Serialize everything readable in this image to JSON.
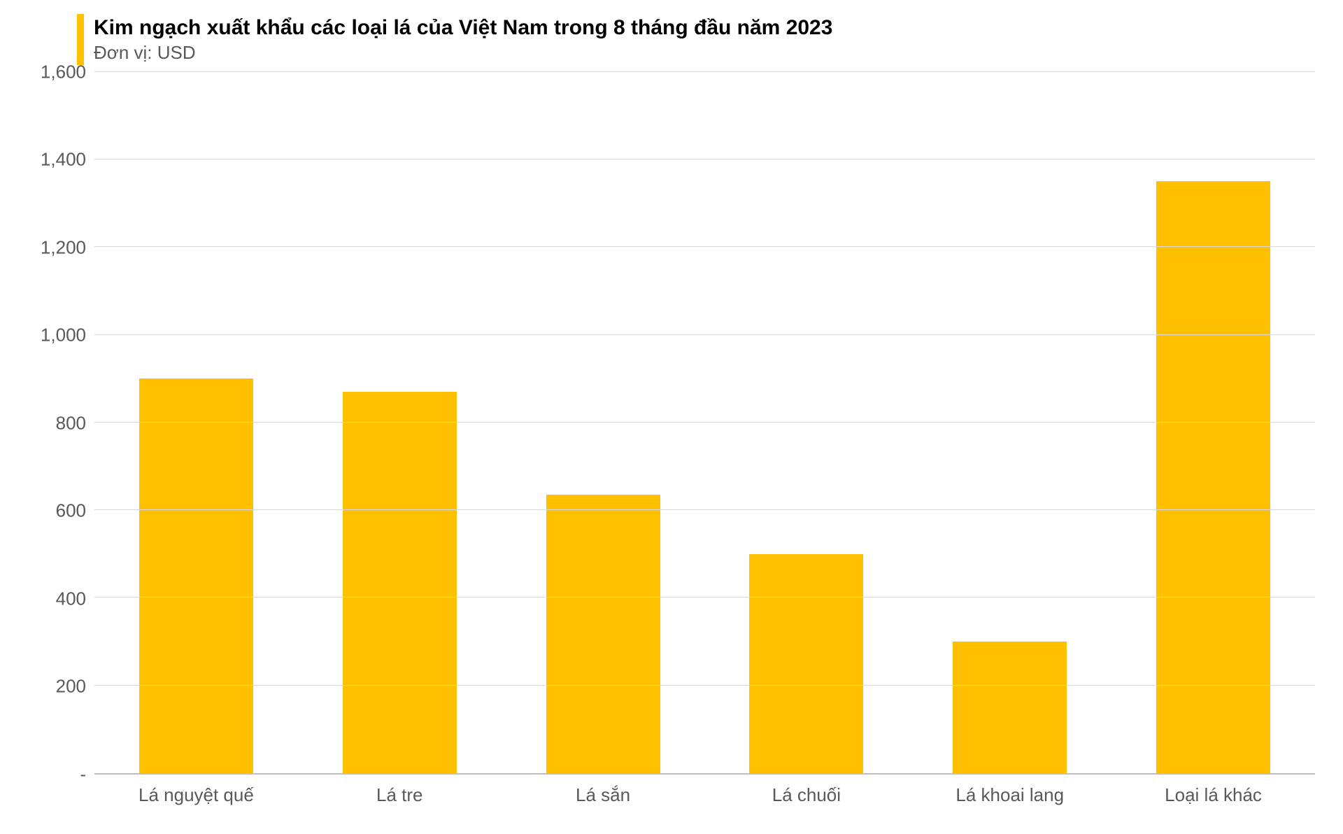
{
  "chart": {
    "type": "bar",
    "title": "Kim ngạch xuất khẩu các loại lá của Việt Nam trong 8 tháng đầu năm 2023",
    "subtitle": "Đơn vị: USD",
    "title_fontsize": 30,
    "subtitle_fontsize": 26,
    "title_color": "#000000",
    "subtitle_color": "#595959",
    "accent_bar_color": "#ffc000",
    "background_color": "#ffffff",
    "categories": [
      "Lá nguyệt quế",
      "Lá tre",
      "Lá sắn",
      "Lá chuối",
      "Lá khoai lang",
      "Loại lá khác"
    ],
    "values": [
      900,
      870,
      635,
      500,
      300,
      1350
    ],
    "bar_color": "#ffc000",
    "bar_width_ratio": 0.56,
    "ylim": [
      0,
      1600
    ],
    "ytick_step": 200,
    "yticks": [
      {
        "v": 0,
        "label": "-"
      },
      {
        "v": 200,
        "label": "200"
      },
      {
        "v": 400,
        "label": "400"
      },
      {
        "v": 600,
        "label": "600"
      },
      {
        "v": 800,
        "label": "800"
      },
      {
        "v": 1000,
        "label": "1,000"
      },
      {
        "v": 1200,
        "label": "1,200"
      },
      {
        "v": 1400,
        "label": "1,400"
      },
      {
        "v": 1600,
        "label": "1,600"
      }
    ],
    "axis_label_fontsize": 26,
    "axis_label_color": "#595959",
    "grid_color": "#d9d9d9",
    "axis_line_color": "#bfbfbf"
  }
}
